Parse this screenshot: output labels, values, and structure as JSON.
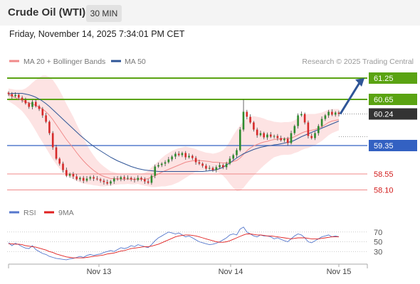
{
  "header": {
    "title": "Crude Oil (WTI)",
    "timeframe": "30 MIN",
    "datetime": "Friday, November 14, 2025 7:34:01 PM CET"
  },
  "legend": {
    "ma20_label": "MA 20 + Bollinger Bands",
    "ma50_label": "MA 50",
    "credit": "Research © 2025 Trading Central",
    "rsi_label": "RSI",
    "ma9_label": "9MA"
  },
  "colors": {
    "resistance": "#5aa312",
    "support": "#3361c2",
    "minor_support": "#f08a8a",
    "ma20": "#f08a8a",
    "ma50": "#2f5597",
    "bands_fill": "#fde3e3",
    "rsi": "#5577cc",
    "rsi_ma": "#e02020",
    "arrow": "#2f5597",
    "current_price": "#333333",
    "candle_up": "#2e8b2e",
    "candle_down": "#d62a2a"
  },
  "chart_data": [
    {
      "type": "candlestick",
      "title": "Crude Oil (WTI)",
      "timeframe": "30 MIN",
      "x_tick_labels": [
        "Nov 13",
        "Nov 14",
        "Nov 15"
      ],
      "y_range": [
        57.85,
        61.45
      ],
      "current_price": 60.24,
      "levels": [
        {
          "value": 61.25,
          "label": "61.25",
          "kind": "resistance"
        },
        {
          "value": 60.65,
          "label": "60.65",
          "kind": "resistance"
        },
        {
          "value": 60.24,
          "label": "60.24",
          "kind": "current"
        },
        {
          "value": 59.35,
          "label": "59.35",
          "kind": "support"
        },
        {
          "value": 58.55,
          "label": "58.55",
          "kind": "minor_support"
        },
        {
          "value": 58.1,
          "label": "58.10",
          "kind": "minor_support"
        }
      ],
      "closes": [
        60.8,
        60.74,
        60.78,
        60.7,
        60.63,
        60.54,
        60.44,
        60.58,
        60.46,
        60.38,
        60.2,
        60.02,
        59.7,
        59.3,
        58.98,
        58.84,
        58.66,
        58.5,
        58.55,
        58.48,
        58.4,
        58.44,
        58.36,
        58.42,
        58.46,
        58.42,
        58.4,
        58.36,
        58.32,
        58.28,
        58.34,
        58.42,
        58.4,
        58.46,
        58.42,
        58.44,
        58.4,
        58.38,
        58.44,
        58.4,
        58.34,
        58.3,
        58.5,
        58.76,
        58.8,
        58.84,
        58.88,
        58.96,
        59.04,
        59.12,
        59.08,
        59.14,
        59.02,
        59.06,
        59.0,
        58.88,
        58.84,
        58.78,
        58.7,
        58.72,
        58.66,
        58.74,
        58.8,
        58.74,
        58.84,
        58.98,
        59.08,
        59.22,
        59.8,
        60.3,
        60.16,
        60.0,
        59.8,
        59.64,
        59.7,
        59.58,
        59.66,
        59.6,
        59.62,
        59.56,
        59.5,
        59.54,
        59.42,
        59.7,
        59.9,
        60.2,
        60.24,
        60.0,
        59.62,
        59.56,
        59.7,
        59.9,
        60.1,
        60.2,
        60.3,
        60.22,
        60.28,
        60.24
      ],
      "ma20": [
        60.78,
        60.74,
        60.7,
        60.66,
        60.62,
        60.58,
        60.55,
        60.52,
        60.48,
        60.43,
        60.38,
        60.3,
        60.2,
        60.08,
        59.94,
        59.8,
        59.66,
        59.52,
        59.4,
        59.28,
        59.15,
        59.03,
        58.92,
        58.82,
        58.73,
        58.65,
        58.58,
        58.52,
        58.48,
        58.45,
        58.42,
        58.42,
        58.41,
        58.41,
        58.4,
        58.41,
        58.4,
        58.4,
        58.41,
        58.4,
        58.4,
        58.42,
        58.46,
        58.5,
        58.55,
        58.6,
        58.64,
        58.68,
        58.72,
        58.76,
        58.8,
        58.84,
        58.88,
        58.9,
        58.92,
        58.93,
        58.93,
        58.92,
        58.91,
        58.9,
        58.88,
        58.88,
        58.87,
        58.86,
        58.86,
        58.87,
        58.9,
        58.93,
        59.0,
        59.1,
        59.2,
        59.28,
        59.34,
        59.38,
        59.42,
        59.45,
        59.47,
        59.5,
        59.52,
        59.53,
        59.54,
        59.55,
        59.55,
        59.56,
        59.6,
        59.65,
        59.7,
        59.74,
        59.76,
        59.78,
        59.8,
        59.84,
        59.88,
        59.94,
        60.0,
        60.04,
        60.06,
        60.08
      ],
      "ma50": [
        60.8,
        60.82,
        60.82,
        60.82,
        60.82,
        60.8,
        60.78,
        60.75,
        60.71,
        60.66,
        60.6,
        60.53,
        60.45,
        60.36,
        60.27,
        60.18,
        60.09,
        60.0,
        59.91,
        59.82,
        59.73,
        59.64,
        59.56,
        59.48,
        59.4,
        59.33,
        59.26,
        59.2,
        59.14,
        59.08,
        59.02,
        58.97,
        58.92,
        58.88,
        58.84,
        58.8,
        58.76,
        58.73,
        58.7,
        58.68,
        58.66,
        58.65,
        58.64,
        58.63,
        58.62,
        58.62,
        58.62,
        58.62,
        58.62,
        58.62,
        58.62,
        58.62,
        58.62,
        58.62,
        58.62,
        58.62,
        58.62,
        58.62,
        58.63,
        58.64,
        58.65,
        58.67,
        58.7,
        58.74,
        58.8,
        58.86,
        58.93,
        59.0,
        59.06,
        59.12,
        59.16,
        59.2,
        59.24,
        59.27,
        59.3,
        59.32,
        59.34,
        59.35,
        59.37,
        59.38,
        59.4,
        59.42,
        59.44,
        59.46,
        59.5,
        59.55,
        59.6,
        59.64,
        59.68,
        59.72,
        59.76,
        59.8,
        59.84,
        59.88,
        59.92,
        59.96,
        60.0,
        60.04
      ],
      "bollinger_width": [
        0.18,
        0.2,
        0.22,
        0.26,
        0.3,
        0.38,
        0.48,
        0.6,
        0.72,
        0.84,
        0.94,
        1.02,
        1.08,
        1.12,
        1.12,
        1.1,
        1.06,
        1.0,
        0.94,
        0.88,
        0.8,
        0.72,
        0.64,
        0.56,
        0.48,
        0.42,
        0.36,
        0.32,
        0.28,
        0.24,
        0.2,
        0.18,
        0.16,
        0.15,
        0.14,
        0.14,
        0.14,
        0.14,
        0.14,
        0.16,
        0.18,
        0.22,
        0.28,
        0.32,
        0.36,
        0.4,
        0.44,
        0.46,
        0.48,
        0.48,
        0.48,
        0.46,
        0.44,
        0.4,
        0.36,
        0.32,
        0.28,
        0.26,
        0.24,
        0.24,
        0.24,
        0.26,
        0.3,
        0.36,
        0.46,
        0.6,
        0.74,
        0.86,
        0.92,
        0.94,
        0.92,
        0.88,
        0.84,
        0.78,
        0.72,
        0.66,
        0.6,
        0.55,
        0.5,
        0.48,
        0.46,
        0.46,
        0.46,
        0.46,
        0.46,
        0.48,
        0.48,
        0.48,
        0.48,
        0.46,
        0.44,
        0.42,
        0.4,
        0.38,
        0.36,
        0.34,
        0.32,
        0.3
      ]
    },
    {
      "type": "line",
      "title": "RSI",
      "y_ticks": [
        70,
        50,
        30
      ],
      "y_range": [
        10,
        90
      ],
      "series": [
        {
          "name": "RSI",
          "values": [
            48,
            42,
            47,
            44,
            40,
            37,
            36,
            42,
            34,
            30,
            26,
            24,
            20,
            18,
            16,
            15,
            14,
            13,
            15,
            16,
            18,
            20,
            18,
            22,
            24,
            22,
            24,
            25,
            28,
            30,
            32,
            30,
            34,
            38,
            36,
            38,
            42,
            40,
            44,
            42,
            40,
            38,
            44,
            52,
            58,
            62,
            66,
            70,
            68,
            66,
            68,
            64,
            60,
            62,
            58,
            54,
            50,
            48,
            46,
            44,
            45,
            47,
            50,
            54,
            58,
            64,
            66,
            64,
            76,
            80,
            70,
            66,
            62,
            60,
            64,
            62,
            62,
            60,
            56,
            58,
            55,
            52,
            50,
            56,
            62,
            66,
            64,
            58,
            50,
            48,
            52,
            56,
            60,
            62,
            64,
            60,
            62,
            60
          ]
        },
        {
          "name": "9MA",
          "values": [
            46,
            46,
            45,
            45,
            44,
            42,
            41,
            40,
            39,
            37,
            35,
            33,
            30,
            28,
            25,
            23,
            21,
            19,
            18,
            17,
            17,
            17,
            17,
            18,
            19,
            20,
            21,
            22,
            23,
            25,
            26,
            27,
            29,
            31,
            32,
            34,
            36,
            37,
            38,
            39,
            40,
            40,
            41,
            43,
            45,
            48,
            51,
            54,
            57,
            60,
            62,
            63,
            64,
            64,
            63,
            62,
            60,
            58,
            56,
            54,
            52,
            50,
            49,
            49,
            50,
            52,
            55,
            58,
            61,
            64,
            66,
            66,
            65,
            64,
            64,
            63,
            62,
            62,
            61,
            60,
            59,
            58,
            57,
            56,
            57,
            58,
            58,
            58,
            57,
            56,
            56,
            56,
            57,
            58,
            59,
            60,
            60,
            60
          ]
        }
      ]
    }
  ]
}
